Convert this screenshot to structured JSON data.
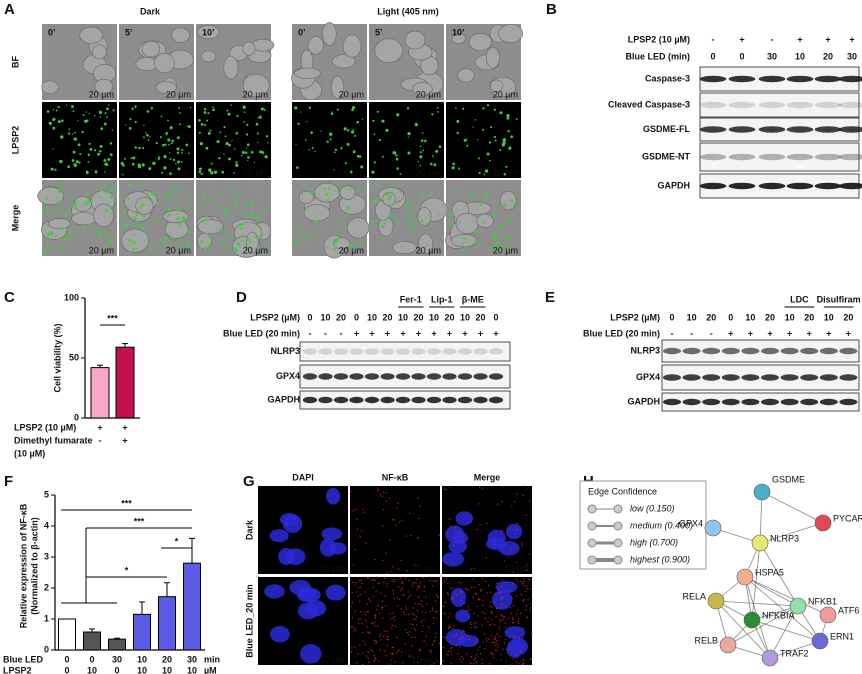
{
  "panel_labels": [
    "A",
    "B",
    "C",
    "D",
    "E",
    "F",
    "G",
    "H"
  ],
  "a": {
    "conditions": [
      "Dark",
      "Light (405 nm)"
    ],
    "times": [
      "0’",
      "5’",
      "10’",
      "0’",
      "5’",
      "10’"
    ],
    "rows": [
      "BF",
      "LPSP2",
      "Merge"
    ],
    "scale": "20 µm"
  },
  "b": {
    "rows": [
      {
        "label": "LPSP2 (10 µM)",
        "values": [
          "-",
          "+",
          "-",
          "+",
          "+",
          "+"
        ]
      },
      {
        "label": "Blue LED (min)",
        "values": [
          "0",
          "0",
          "30",
          "10",
          "20",
          "30"
        ]
      }
    ],
    "bands": [
      "Caspase-3",
      "Cleaved Caspase-3",
      "GSDME-FL",
      "GSDME-NT",
      "GAPDH"
    ]
  },
  "c": {
    "type": "bar",
    "ylabel": "Cell viability (%)",
    "values": [
      42,
      59
    ],
    "errors": [
      2,
      3
    ],
    "colors": [
      "#f7a6c6",
      "#c4104e"
    ],
    "ylim": [
      0,
      100
    ],
    "yticks": [
      0,
      50,
      100
    ],
    "significance": "***",
    "conditions": [
      {
        "label": [
          "LPSP2 (10 µM)"
        ],
        "values": [
          "+",
          "+"
        ]
      },
      {
        "label": [
          "Dimethyl fumarate",
          "(10 µM)"
        ],
        "values": [
          "-",
          "+"
        ]
      }
    ]
  },
  "d": {
    "rows": [
      {
        "label": "LPSP2 (µM)",
        "values": [
          "0",
          "10",
          "20",
          "0",
          "10",
          "20",
          "10",
          "20",
          "10",
          "20",
          "10",
          "20",
          "0"
        ]
      },
      {
        "label": "Blue LED (20 min)",
        "values": [
          "-",
          "-",
          "-",
          "+",
          "+",
          "+",
          "+",
          "+",
          "+",
          "+",
          "+",
          "+",
          "+"
        ]
      }
    ],
    "groups": [
      "Fer-1",
      "Lip-1",
      "β-ME"
    ],
    "bands": [
      "NLRP3",
      "GPX4",
      "GAPDH"
    ]
  },
  "e": {
    "rows": [
      {
        "label": "LPSP2 (µM)",
        "values": [
          "0",
          "10",
          "20",
          "0",
          "10",
          "20",
          "10",
          "20",
          "10",
          "20"
        ]
      },
      {
        "label": "Blue LED (20 min)",
        "values": [
          "-",
          "-",
          "-",
          "+",
          "+",
          "+",
          "+",
          "+",
          "+",
          "+"
        ]
      }
    ],
    "groups": [
      "LDC",
      "Disulfiram"
    ],
    "bands": [
      "NLRP3",
      "GPX4",
      "GAPDH"
    ]
  },
  "f": {
    "type": "bar",
    "ylabel": [
      "Relative expression of NF-κB",
      "(Normalized to β-actin)"
    ],
    "values": [
      1,
      0.58,
      0.35,
      1.15,
      1.72,
      2.8
    ],
    "errors": [
      0,
      0.1,
      0.03,
      0.4,
      0.45,
      0.8
    ],
    "colors": [
      "#ffffff",
      "#555555",
      "#555555",
      "#5b5be6",
      "#5b5be6",
      "#5b5be6"
    ],
    "ylim": [
      0,
      5
    ],
    "yticks": [
      0,
      1,
      2,
      3,
      4,
      5
    ],
    "significance": [
      "***",
      "***",
      "*",
      "*"
    ],
    "conditions": [
      {
        "label": "Blue LED",
        "values": [
          "0",
          "0",
          "30",
          "10",
          "20",
          "30"
        ],
        "unit": "min"
      },
      {
        "label": "LPSP2",
        "values": [
          "0",
          "10",
          "0",
          "10",
          "10",
          "10"
        ],
        "unit": "µM"
      }
    ]
  },
  "g": {
    "columns": [
      "DAPI",
      "NF-κB",
      "Merge"
    ],
    "rows": [
      "Dark",
      "Blue LED_20 min"
    ],
    "scale": "10 µm"
  },
  "h": {
    "legend_title": "Edge Confidence",
    "legend": [
      "low (0.150)",
      "medium (0.400)",
      "high (0.700)",
      "highest (0.900)"
    ],
    "nodes": [
      "GSDME",
      "PYCARD",
      "GPX4",
      "NLRP3",
      "HSPA5",
      "RELA",
      "NFKB1",
      "NFKBIA",
      "ATF6",
      "ERN1",
      "RELB",
      "TRAF2"
    ]
  }
}
